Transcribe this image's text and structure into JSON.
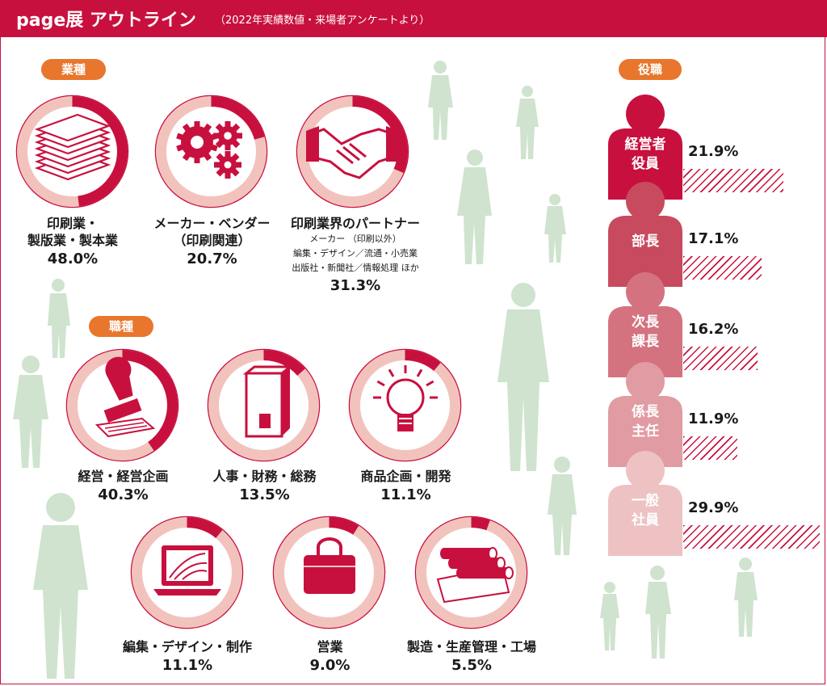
{
  "header": {
    "title": "page展 アウトライン",
    "subtitle": "（2022年実績数値・来場者アンケートより）"
  },
  "chart_data": [
    {
      "type": "pie",
      "title": "業種",
      "categories": [
        "印刷業・製版業・製本業",
        "メーカー・ベンダー（印刷関連）",
        "印刷業界のパートナー"
      ],
      "values": [
        48.0,
        20.7,
        31.3
      ],
      "value_labels": [
        "48.0%",
        "20.7%",
        "31.3%"
      ],
      "notes": [
        "",
        "",
        "メーカー （印刷以外）\n編集・デザイン／流通・小売業\n出版社・新聞社／情報処理 ほか"
      ]
    },
    {
      "type": "pie",
      "title": "職種",
      "categories": [
        "経営・経営企画",
        "人事・財務・総務",
        "商品企画・開発",
        "編集・デザイン・制作",
        "営業",
        "製造・生産管理・工場"
      ],
      "values": [
        40.3,
        13.5,
        11.1,
        11.1,
        9.0,
        5.5
      ],
      "value_labels": [
        "40.3%",
        "13.5%",
        "11.1%",
        "11.1%",
        "9.0%",
        "5.5%"
      ]
    },
    {
      "type": "bar",
      "title": "役職",
      "categories": [
        "経営者役員",
        "部長",
        "次長課長",
        "係長主任",
        "一般社員"
      ],
      "values": [
        21.9,
        17.1,
        16.2,
        11.9,
        29.9
      ],
      "value_labels": [
        "21.9%",
        "17.1%",
        "16.2%",
        "11.9%",
        "29.9%"
      ]
    }
  ],
  "gyoshu": {
    "label": "業種",
    "items": [
      {
        "line1": "印刷業・",
        "line2": "製版業・製本業",
        "pct": "48.0%",
        "value": 48.0,
        "icon": "paper-stack-icon"
      },
      {
        "line1": "メーカー・ベンダー",
        "line2": "（印刷関連）",
        "pct": "20.7%",
        "value": 20.7,
        "icon": "gears-icon"
      },
      {
        "line1": "印刷業界のパートナー",
        "sub1": "メーカー （印刷以外）",
        "sub2": "編集・デザイン／流通・小売業",
        "sub3": "出版社・新聞社／情報処理 ほか",
        "pct": "31.3%",
        "value": 31.3,
        "icon": "handshake-icon"
      }
    ]
  },
  "shokushu": {
    "label": "職種",
    "items": [
      {
        "name": "経営・経営企画",
        "pct": "40.3%",
        "value": 40.3,
        "icon": "stamp-icon"
      },
      {
        "name": "人事・財務・総務",
        "pct": "13.5%",
        "value": 13.5,
        "icon": "binder-icon"
      },
      {
        "name": "商品企画・開発",
        "pct": "11.1%",
        "value": 11.1,
        "icon": "lightbulb-icon"
      },
      {
        "name": "編集・デザイン・制作",
        "pct": "11.1%",
        "value": 11.1,
        "icon": "laptop-icon"
      },
      {
        "name": "営業",
        "pct": "9.0%",
        "value": 9.0,
        "icon": "briefcase-icon"
      },
      {
        "name": "製造・生産管理・工場",
        "pct": "5.5%",
        "value": 5.5,
        "icon": "paper-rolls-icon"
      }
    ]
  },
  "yakushoku": {
    "label": "役職",
    "items": [
      {
        "line1": "経営者",
        "line2": "役員",
        "pct": "21.9%",
        "value": 21.9,
        "color": "#c8103e"
      },
      {
        "line1": "部長",
        "line2": "",
        "pct": "17.1%",
        "value": 17.1,
        "color": "#c84a5e"
      },
      {
        "line1": "次長",
        "line2": "課長",
        "pct": "16.2%",
        "value": 16.2,
        "color": "#d4737f"
      },
      {
        "line1": "係長",
        "line2": "主任",
        "pct": "11.9%",
        "value": 11.9,
        "color": "#e19ba2"
      },
      {
        "line1": "一般",
        "line2": "社員",
        "pct": "29.9%",
        "value": 29.9,
        "color": "#eec2c3"
      }
    ]
  },
  "colors": {
    "accent": "#c8103e",
    "ring_light": "#f2c3bd",
    "pill": "#e8762c",
    "people": "#cfe3cf"
  }
}
